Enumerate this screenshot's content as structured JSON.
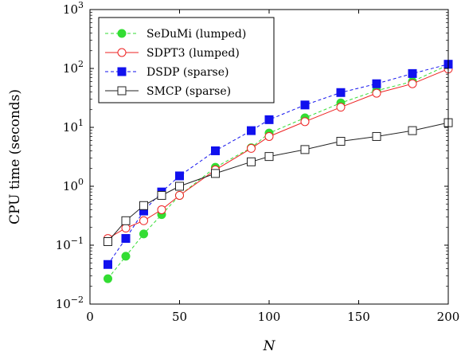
{
  "chart_data": {
    "type": "line",
    "title": "",
    "xlabel": "N",
    "ylabel": "CPU time (seconds)",
    "xlim": [
      0,
      200
    ],
    "ylim": [
      0.01,
      1000
    ],
    "yscale": "log",
    "grid": false,
    "legend_position": "top-left",
    "x_ticks": [
      0,
      50,
      100,
      150,
      200
    ],
    "x_tick_labels": [
      "0",
      "50",
      "100",
      "150",
      "200"
    ],
    "y_ticks": [
      0.01,
      0.1,
      1,
      10,
      100,
      1000
    ],
    "y_tick_labels": [
      {
        "base": "10",
        "exp": "−2"
      },
      {
        "base": "10",
        "exp": "−1"
      },
      {
        "base": "10",
        "exp": "0"
      },
      {
        "base": "10",
        "exp": "1"
      },
      {
        "base": "10",
        "exp": "2"
      },
      {
        "base": "10",
        "exp": "3"
      }
    ],
    "series": [
      {
        "name": "SeDuMi (lumped)",
        "color": "#33dd33",
        "dash": "dashed",
        "marker": "filled-circle",
        "x": [
          10,
          20,
          30,
          40,
          50,
          70,
          90,
          100,
          120,
          140,
          160,
          180,
          200
        ],
        "y": [
          0.027,
          0.065,
          0.155,
          0.33,
          0.7,
          2.1,
          4.5,
          8.0,
          14.5,
          26,
          42,
          60,
          115
        ]
      },
      {
        "name": "SDPT3 (lumped)",
        "color": "#ee2222",
        "dash": "solid",
        "marker": "open-circle",
        "x": [
          10,
          20,
          30,
          40,
          50,
          70,
          90,
          100,
          120,
          140,
          160,
          180,
          200
        ],
        "y": [
          0.13,
          0.195,
          0.26,
          0.4,
          0.7,
          1.9,
          4.4,
          7.0,
          12.5,
          22,
          38,
          55,
          98
        ]
      },
      {
        "name": "DSDP (sparse)",
        "color": "#1111ee",
        "dash": "dashed",
        "marker": "filled-square",
        "x": [
          10,
          20,
          30,
          40,
          50,
          70,
          90,
          100,
          120,
          140,
          160,
          180,
          200
        ],
        "y": [
          0.047,
          0.13,
          0.38,
          0.8,
          1.5,
          4.0,
          8.8,
          13.5,
          24,
          39,
          55,
          82,
          118
        ]
      },
      {
        "name": "SMCP (sparse)",
        "color": "#222222",
        "dash": "solid",
        "marker": "open-square",
        "x": [
          10,
          20,
          30,
          40,
          50,
          70,
          90,
          100,
          120,
          140,
          160,
          180,
          200
        ],
        "y": [
          0.115,
          0.26,
          0.47,
          0.7,
          1.0,
          1.65,
          2.6,
          3.2,
          4.2,
          5.8,
          7.0,
          8.8,
          12
        ]
      }
    ]
  }
}
